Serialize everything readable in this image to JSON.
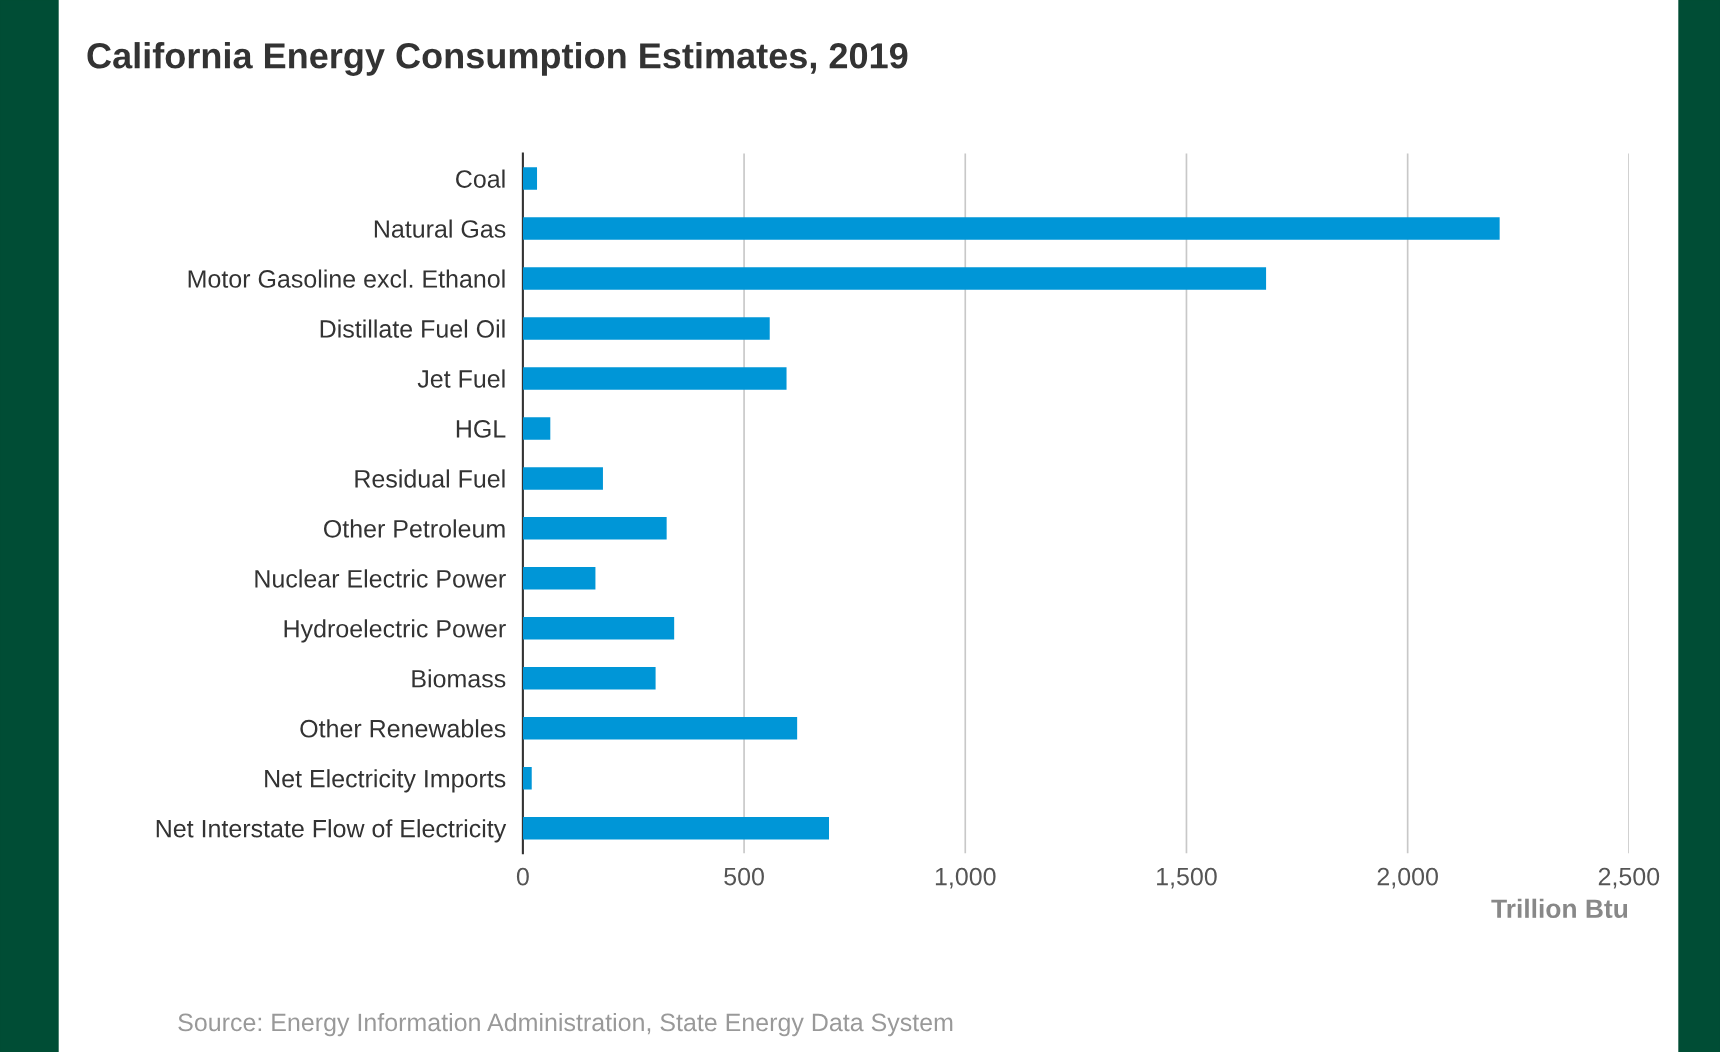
{
  "chart_data": {
    "type": "bar",
    "orientation": "horizontal",
    "title": "California Energy Consumption Estimates, 2019",
    "categories": [
      "Coal",
      "Natural Gas",
      "Motor Gasoline excl. Ethanol",
      "Distillate Fuel Oil",
      "Jet Fuel",
      "HGL",
      "Residual Fuel",
      "Other Petroleum",
      "Nuclear Electric Power",
      "Hydroelectric Power",
      "Biomass",
      "Other Renewables",
      "Net Electricity Imports",
      "Net Interstate Flow of Electricity"
    ],
    "values": [
      32,
      2208,
      1680,
      558,
      596,
      62,
      181,
      325,
      164,
      342,
      300,
      620,
      20,
      692
    ],
    "color": "#0096d7",
    "xlim": [
      0,
      2500
    ],
    "xticks": [
      0,
      {
        "value": 500,
        "label": "500"
      },
      {
        "value": 1000,
        "label": "1,000"
      },
      {
        "value": 1500,
        "label": "1,500"
      },
      {
        "value": 2000,
        "label": "2,000"
      },
      {
        "value": 2500,
        "label": "2,500"
      }
    ],
    "xlabel": "Trillion Btu",
    "grid": "x",
    "annotations": [
      "Source: Energy Information Administration, State Energy Data System"
    ]
  }
}
